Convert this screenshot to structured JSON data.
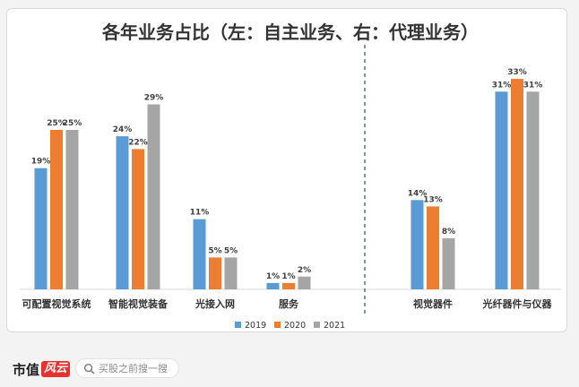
{
  "chart_data": {
    "type": "bar",
    "title": "各年业务占比（左：自主业务、右：代理业务）",
    "categories": [
      "可配置视觉系统",
      "智能视觉装备",
      "光接入网",
      "服务",
      "视觉器件",
      "光纤器件与仪器"
    ],
    "groups": [
      {
        "name": "左：自主业务",
        "categories": [
          "可配置视觉系统",
          "智能视觉装备",
          "光接入网",
          "服务"
        ]
      },
      {
        "name": "右：代理业务",
        "categories": [
          "视觉器件",
          "光纤器件与仪器"
        ]
      }
    ],
    "series": [
      {
        "name": "2019",
        "color": "#5b9bd5",
        "values": [
          19,
          24,
          11,
          1,
          14,
          31
        ],
        "labels": [
          "19%",
          "24%",
          "11%",
          "1%",
          "14%",
          "31%"
        ]
      },
      {
        "name": "2020",
        "color": "#ed7d31",
        "values": [
          25,
          22,
          5,
          1,
          13,
          33
        ],
        "labels": [
          "25%",
          "22%",
          "5%",
          "1%",
          "13%",
          "33%"
        ]
      },
      {
        "name": "2021",
        "color": "#a5a5a5",
        "values": [
          25,
          29,
          5,
          2,
          8,
          31
        ],
        "labels": [
          "25%",
          "29%",
          "5%",
          "2%",
          "8%",
          "31%"
        ]
      }
    ],
    "ylim": [
      0,
      35
    ],
    "grid": false,
    "legend": "bottom-center",
    "divider": "dashed-vertical"
  },
  "footer": {
    "brand_name": "市值",
    "brand_mark": "风云",
    "search_placeholder": "买股之前搜一搜",
    "search_icon": "search-icon"
  }
}
